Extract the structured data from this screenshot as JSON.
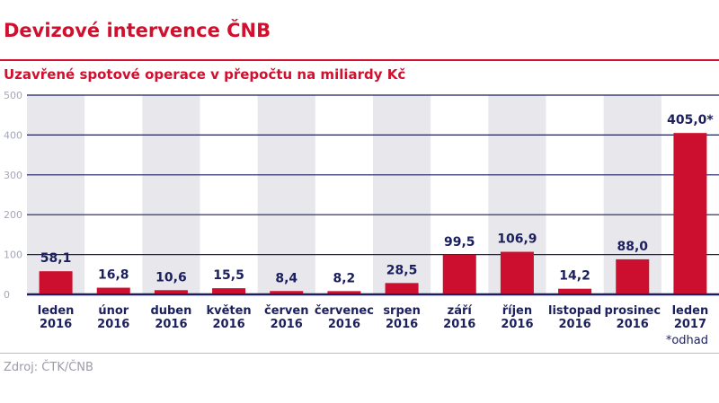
{
  "header": {
    "title": "Devizové intervence ČNB",
    "subtitle": "Uzavřené spotové operace v přepočtu na miliardy Kč"
  },
  "footer": {
    "note": "*odhad",
    "source": "Zdroj: ČTK/ČNB"
  },
  "colors": {
    "bar": "#cc0e2f",
    "band": "#e8e8ec",
    "grid": "#1b1f5e",
    "text": "#1b1f5e",
    "accent": "#d0102e"
  },
  "chart_data": {
    "type": "bar",
    "title": "Uzavřené spotové operace v přepočtu na miliardy Kč",
    "categories": [
      [
        "leden",
        "2016"
      ],
      [
        "únor",
        "2016"
      ],
      [
        "duben",
        "2016"
      ],
      [
        "květen",
        "2016"
      ],
      [
        "červen",
        "2016"
      ],
      [
        "červenec",
        "2016"
      ],
      [
        "srpen",
        "2016"
      ],
      [
        "září",
        "2016"
      ],
      [
        "říjen",
        "2016"
      ],
      [
        "listopad",
        "2016"
      ],
      [
        "prosinec",
        "2016"
      ],
      [
        "leden",
        "2017"
      ]
    ],
    "values": [
      58.1,
      16.8,
      10.6,
      15.5,
      8.4,
      8.2,
      28.5,
      99.5,
      106.9,
      14.2,
      88.0,
      405.0
    ],
    "value_labels": [
      "58,1",
      "16,8",
      "10,6",
      "15,5",
      "8,4",
      "8,2",
      "28,5",
      "99,5",
      "106,9",
      "14,2",
      "88,0",
      "405,0*"
    ],
    "yticks": [
      0,
      100,
      200,
      300,
      400,
      500
    ],
    "ylim": [
      0,
      500
    ],
    "grid": true,
    "xlabel": "",
    "ylabel": ""
  }
}
